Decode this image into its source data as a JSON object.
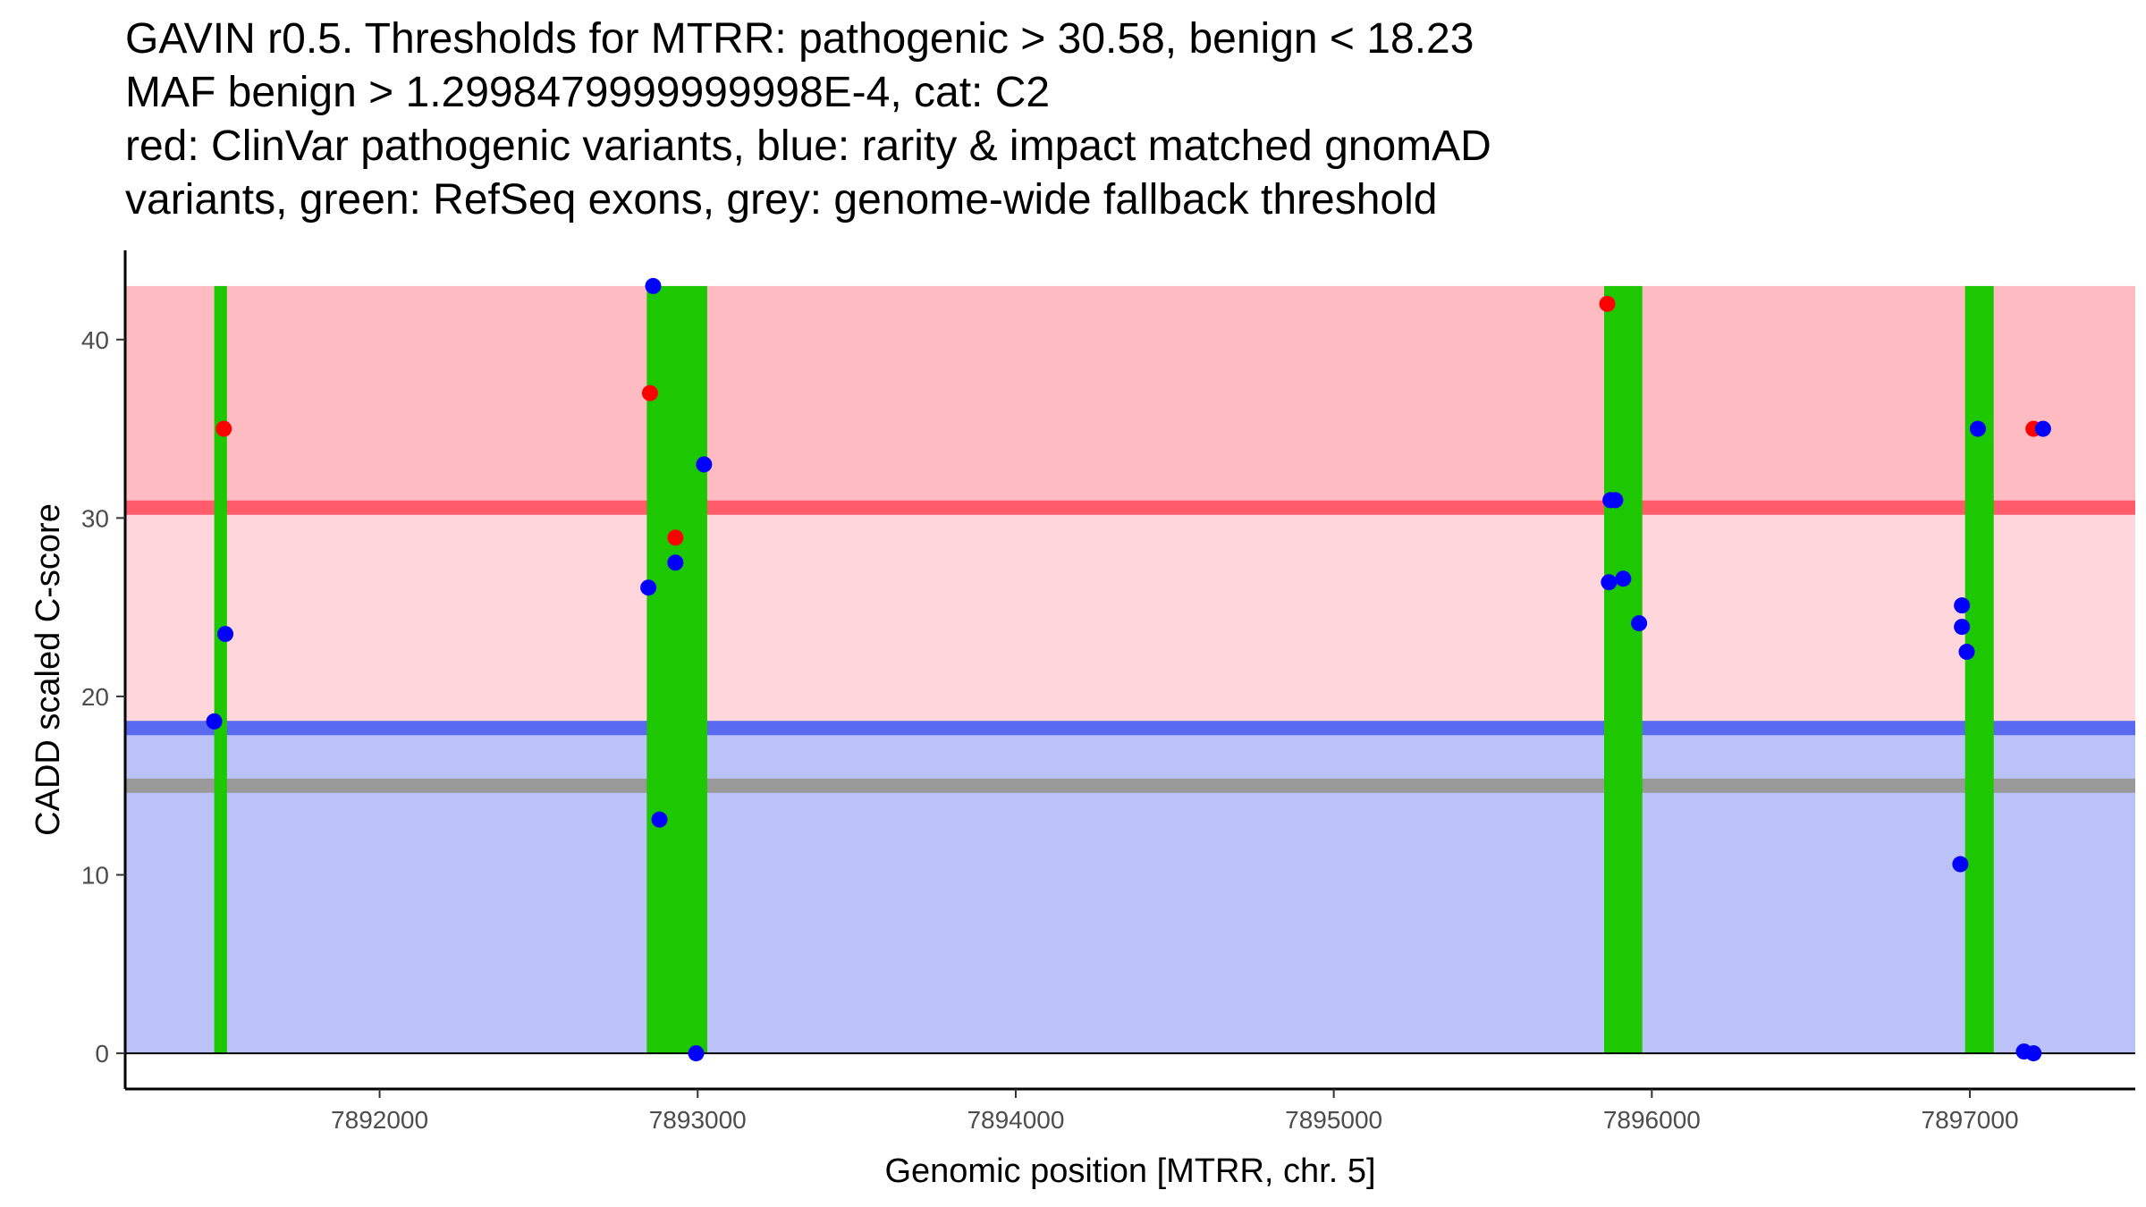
{
  "title_lines": [
    "GAVIN r0.5. Thresholds for MTRR: pathogenic > 30.58, benign < 18.23",
    "MAF benign > 1.2998479999999998E-4, cat: C2",
    "red: ClinVar pathogenic variants, blue: rarity & impact matched gnomAD",
    "variants, green: RefSeq exons, grey: genome-wide fallback threshold"
  ],
  "colors": {
    "pathogenic_region": "#ffbbc2",
    "intermediate_region": "#ffd6dc",
    "benign_region": "#bbc2f8",
    "pathogenic_line": "#ff5b6b",
    "benign_line": "#5a6af0",
    "fallback_line": "#999999",
    "exon": "#1dc800",
    "clinvar_point": "#ff0000",
    "gnomad_point": "#0000ff"
  },
  "chart_data": {
    "type": "scatter",
    "title": "GAVIN r0.5. Thresholds for MTRR: pathogenic > 30.58, benign < 18.23",
    "xlabel": "Genomic position [MTRR, chr. 5]",
    "ylabel": "CADD scaled C-score",
    "xlim": [
      7891200,
      7897520
    ],
    "ylim": [
      -2,
      45
    ],
    "x_ticks": [
      7892000,
      7893000,
      7894000,
      7895000,
      7896000,
      7897000
    ],
    "x_tick_labels": [
      "7892000",
      "7893000",
      "7894000",
      "7895000",
      "7896000",
      "7897000"
    ],
    "y_ticks": [
      0,
      10,
      20,
      30,
      40
    ],
    "y_tick_labels": [
      "0",
      "10",
      "20",
      "30",
      "40"
    ],
    "thresholds": {
      "pathogenic": 30.58,
      "benign": 18.23,
      "fallback": 15,
      "region_top": 43
    },
    "exons": [
      {
        "start": 7891480,
        "end": 7891520
      },
      {
        "start": 7892840,
        "end": 7893030
      },
      {
        "start": 7895850,
        "end": 7895970
      },
      {
        "start": 7896985,
        "end": 7897075
      }
    ],
    "series": [
      {
        "name": "ClinVar pathogenic variants",
        "points": [
          {
            "x": 7891510,
            "y": 35.0
          },
          {
            "x": 7892850,
            "y": 37.0
          },
          {
            "x": 7892930,
            "y": 28.9
          },
          {
            "x": 7895860,
            "y": 42.0
          },
          {
            "x": 7897200,
            "y": 35.0
          }
        ]
      },
      {
        "name": "rarity & impact matched gnomAD variants",
        "points": [
          {
            "x": 7891480,
            "y": 18.6
          },
          {
            "x": 7891515,
            "y": 23.5
          },
          {
            "x": 7892860,
            "y": 43.0
          },
          {
            "x": 7892845,
            "y": 26.1
          },
          {
            "x": 7892930,
            "y": 27.5
          },
          {
            "x": 7892880,
            "y": 13.1
          },
          {
            "x": 7893020,
            "y": 33.0
          },
          {
            "x": 7892995,
            "y": 0.0
          },
          {
            "x": 7895870,
            "y": 31.0
          },
          {
            "x": 7895885,
            "y": 31.0
          },
          {
            "x": 7895865,
            "y": 26.4
          },
          {
            "x": 7895910,
            "y": 26.6
          },
          {
            "x": 7895960,
            "y": 24.1
          },
          {
            "x": 7896975,
            "y": 25.1
          },
          {
            "x": 7896975,
            "y": 23.9
          },
          {
            "x": 7896990,
            "y": 22.5
          },
          {
            "x": 7896970,
            "y": 10.6
          },
          {
            "x": 7897025,
            "y": 35.0
          },
          {
            "x": 7897170,
            "y": 0.1
          },
          {
            "x": 7897200,
            "y": 0.0
          },
          {
            "x": 7897230,
            "y": 35.0
          }
        ]
      }
    ]
  }
}
